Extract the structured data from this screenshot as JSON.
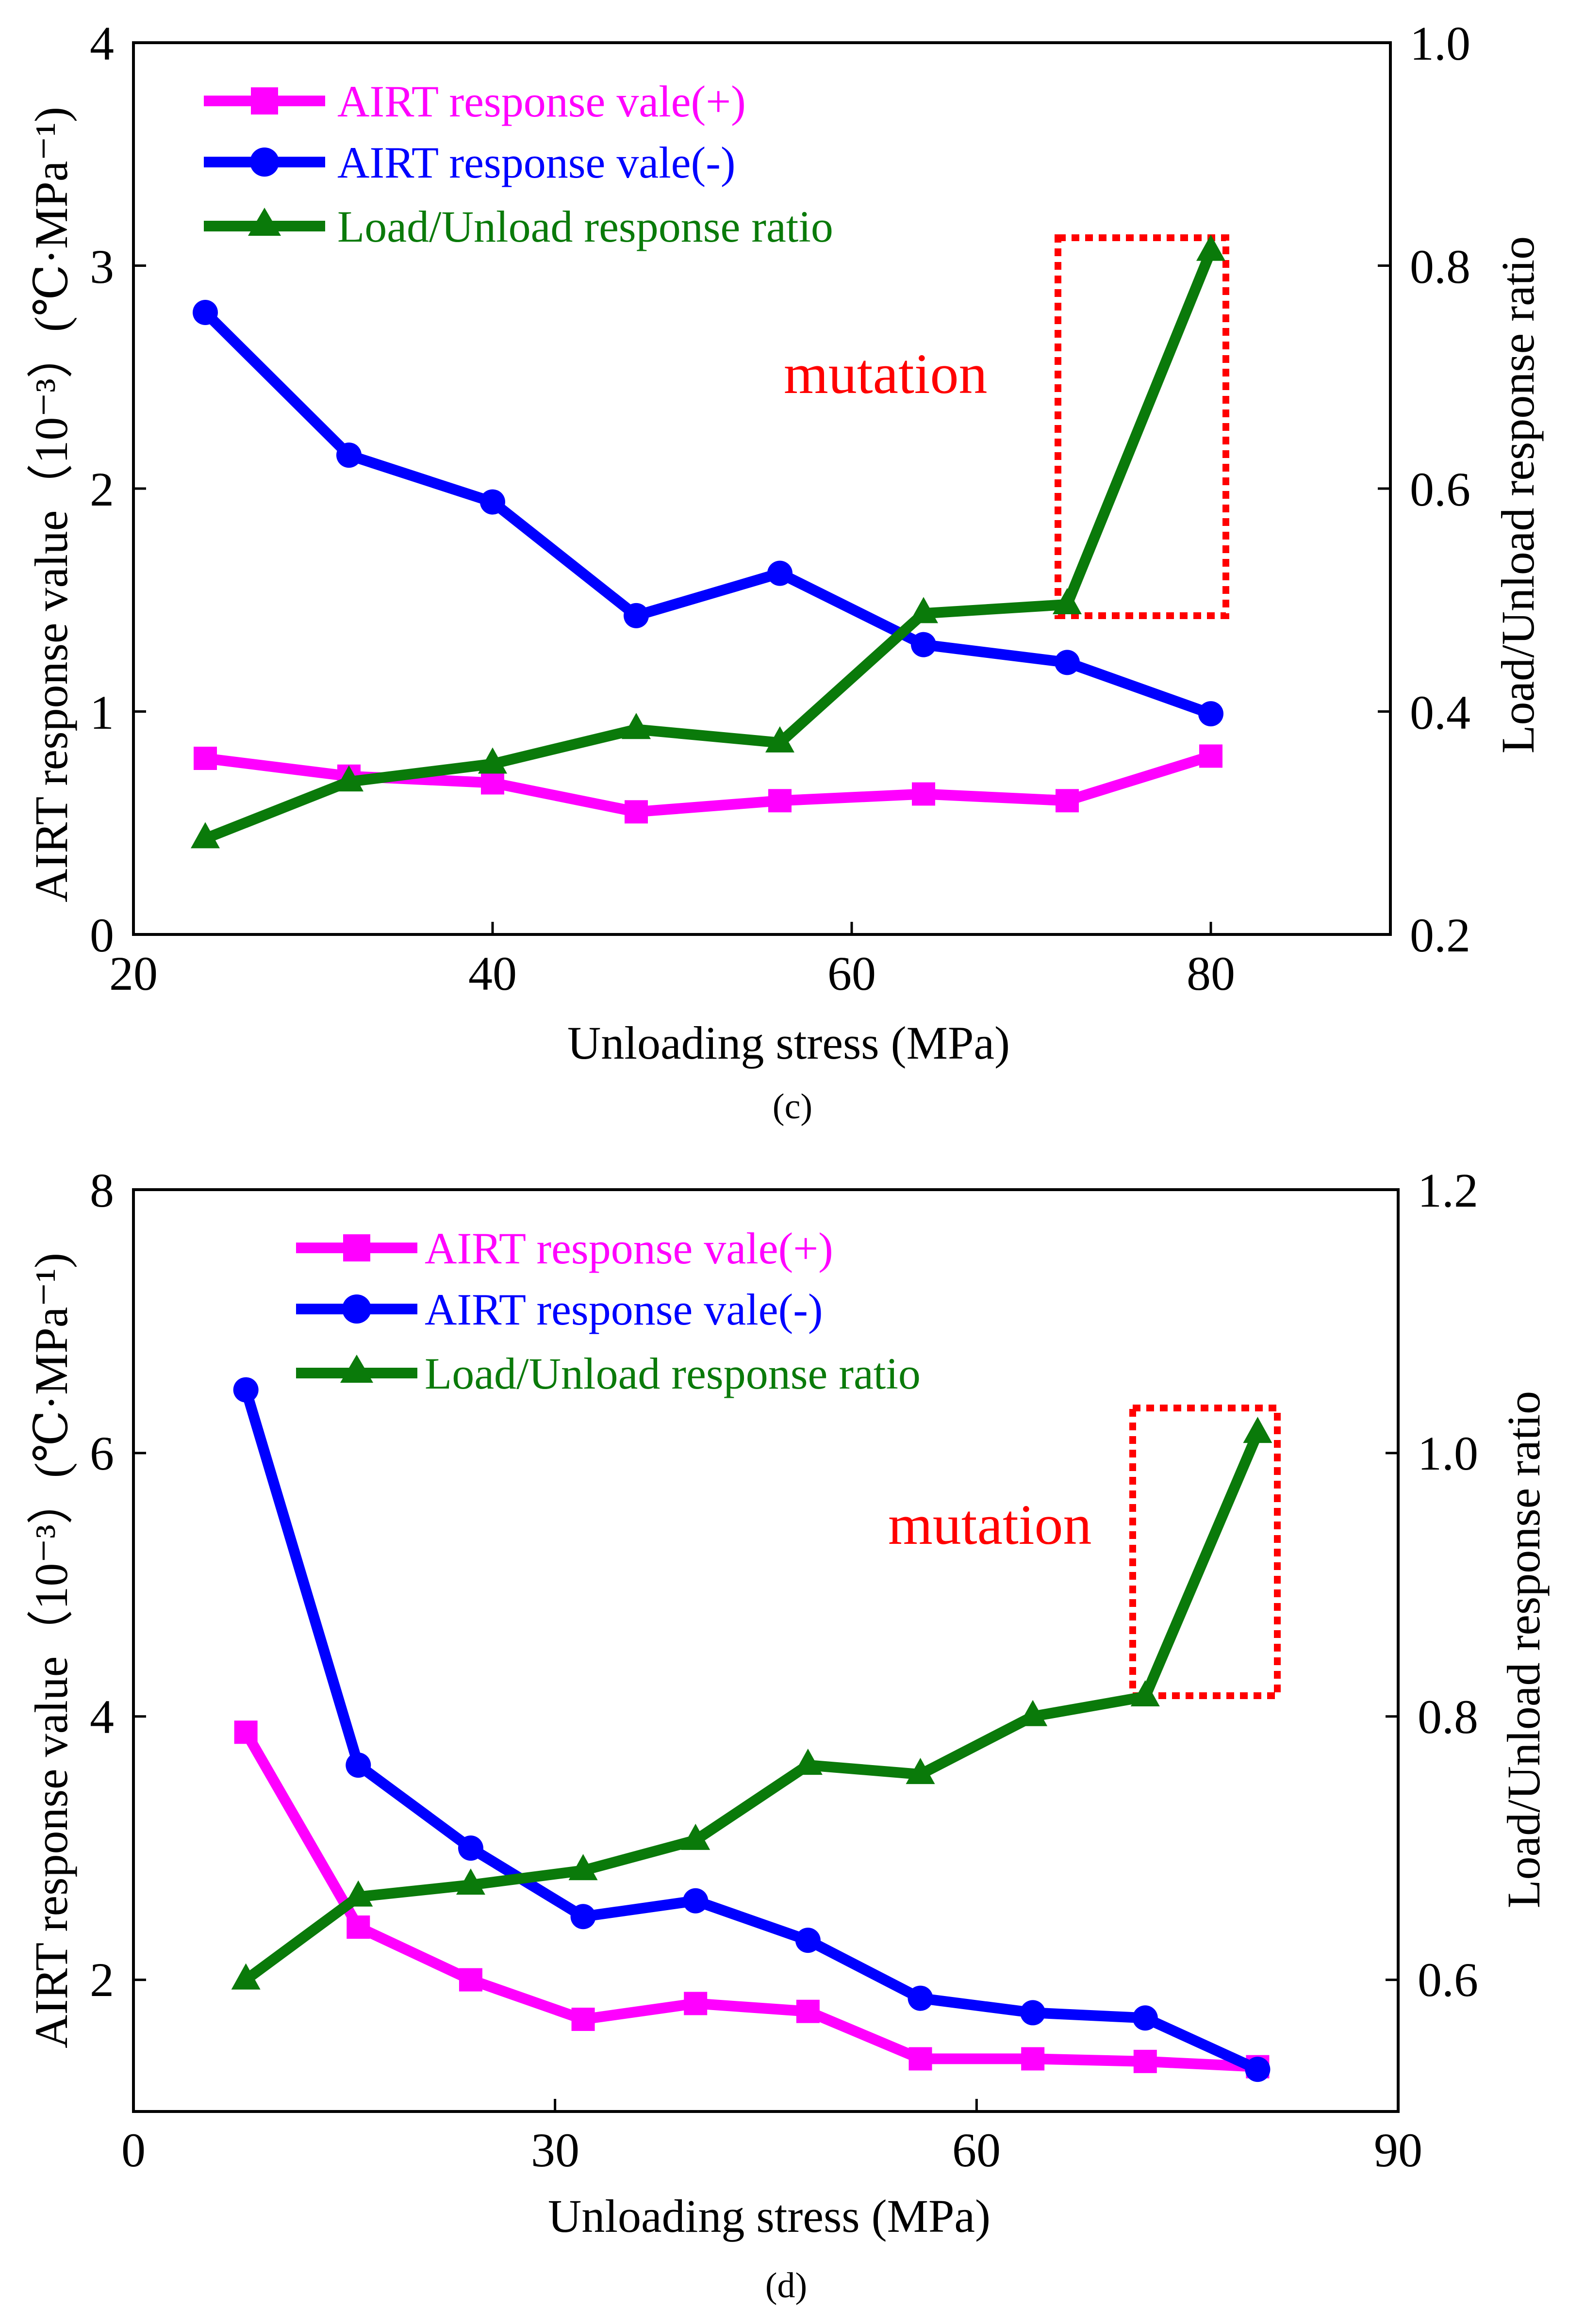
{
  "chart_data": [
    {
      "type": "line",
      "panel_label": "c",
      "caption_text": "(c)",
      "xlabel": "Unloading stress (MPa)",
      "ylabel_left": "AIRT response value（10⁻³）(℃·MPa⁻¹)",
      "ylabel_right": "Load/Unload response ratio",
      "xlim": [
        20,
        90
      ],
      "xticks": [
        20,
        40,
        60,
        80
      ],
      "ylim_left": [
        0,
        4
      ],
      "yticks_left": [
        "0",
        "1",
        "2",
        "3",
        "4"
      ],
      "ylim_right": [
        0.2,
        1.0
      ],
      "yticks_right": [
        "0.2",
        "0.4",
        "0.6",
        "0.8",
        "1.0"
      ],
      "x": [
        24,
        32,
        40,
        48,
        56,
        64,
        72,
        80
      ],
      "series": [
        {
          "name": "AIRT response vale(+)",
          "axis": "left",
          "color": "#ff00ff",
          "marker": "square",
          "values": [
            0.79,
            0.71,
            0.68,
            0.55,
            0.6,
            0.63,
            0.6,
            0.8
          ]
        },
        {
          "name": "AIRT response vale(-)",
          "axis": "left",
          "color": "#0000ff",
          "marker": "circle",
          "values": [
            2.79,
            2.15,
            1.94,
            1.43,
            1.62,
            1.3,
            1.22,
            0.99
          ]
        },
        {
          "name": "Load/Unload response ratio",
          "axis": "right",
          "color": "#0a7a0a",
          "marker": "triangle",
          "values": [
            0.286,
            0.337,
            0.353,
            0.384,
            0.372,
            0.488,
            0.496,
            0.813
          ]
        }
      ],
      "annotation": {
        "text": "mutation",
        "color": "#ff0000",
        "box_x": [
          71.7,
          80.7
        ],
        "box_y_right": [
          0.486,
          0.83
        ]
      }
    },
    {
      "type": "line",
      "panel_label": "d",
      "caption_text": "(d)",
      "xlabel": "Unloading stress (MPa)",
      "ylabel_left": "AIRT response value（10⁻³）(℃·MPa⁻¹)",
      "ylabel_right": "Load/Unload response ratio",
      "xlim": [
        0,
        90
      ],
      "xticks": [
        0,
        30,
        60,
        90
      ],
      "ylim_left": [
        1,
        8
      ],
      "yticks_left": [
        "2",
        "4",
        "6",
        "8"
      ],
      "ylim_right": [
        0.5,
        1.2
      ],
      "yticks_right": [
        "0.6",
        "0.8",
        "1.0",
        "1.2"
      ],
      "x": [
        8,
        16,
        24,
        32,
        40,
        48,
        56,
        64,
        72,
        80
      ],
      "series": [
        {
          "name": "AIRT response vale(+)",
          "axis": "left",
          "color": "#ff00ff",
          "marker": "square",
          "values": [
            3.88,
            2.4,
            2.0,
            1.7,
            1.82,
            1.76,
            1.4,
            1.4,
            1.38,
            1.34
          ]
        },
        {
          "name": "AIRT response vale(-)",
          "axis": "left",
          "color": "#0000ff",
          "marker": "circle",
          "values": [
            6.48,
            3.63,
            3.0,
            2.48,
            2.6,
            2.3,
            1.86,
            1.75,
            1.71,
            1.32
          ]
        },
        {
          "name": "Load/Unload response ratio",
          "axis": "right",
          "color": "#0a7a0a",
          "marker": "triangle",
          "values": [
            0.6,
            0.663,
            0.672,
            0.683,
            0.706,
            0.763,
            0.756,
            0.8,
            0.815,
            1.015
          ]
        }
      ],
      "annotation": {
        "text": "mutation",
        "color": "#ff0000",
        "box_x": [
          71.0,
          81.5
        ],
        "box_y_right": [
          0.81,
          1.025
        ]
      }
    }
  ]
}
